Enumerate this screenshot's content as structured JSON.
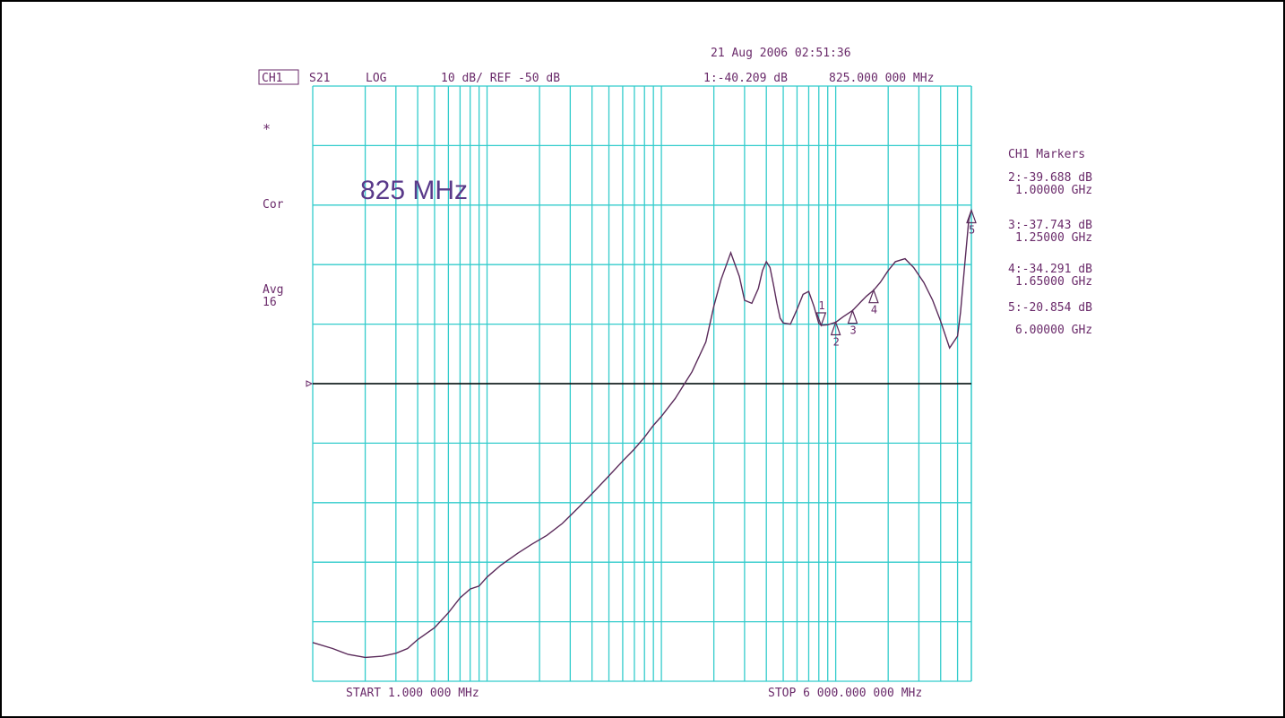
{
  "header": {
    "datetime": "21 Aug 2006  02:51:36",
    "channel": "CH1",
    "parameter": "S21",
    "format": "LOG",
    "scale": "10 dB/ REF -50 dB",
    "active_marker": "1:-40.209 dB",
    "active_marker_freq": "825.000 000 MHz"
  },
  "left_annotations": {
    "asterisk": "*",
    "correction": "Cor",
    "avg_label": "Avg",
    "avg_count": "16",
    "big_label": "825 MHz"
  },
  "footer": {
    "start": "START  1.000 000 MHz",
    "stop": "STOP 6 000.000 000 MHz"
  },
  "marker_panel": {
    "title": "CH1 Markers",
    "entries": [
      {
        "value": "2:-39.688 dB",
        "freq": "1.00000 GHz"
      },
      {
        "value": "3:-37.743 dB",
        "freq": "1.25000 GHz"
      },
      {
        "value": "4:-34.291 dB",
        "freq": "1.65000 GHz"
      },
      {
        "value": "5:-20.854 dB",
        "freq": "6.00000 GHz"
      }
    ]
  },
  "colors": {
    "grid": "#33cccc",
    "trace": "#5a2a5a",
    "text": "#6a2a6a",
    "reference": "#000000"
  },
  "chart_data": {
    "type": "line",
    "x_scale": "log",
    "x_unit": "MHz",
    "xlim": [
      1,
      6000
    ],
    "ylim": [
      -100,
      0
    ],
    "reference_dB": -50,
    "grid": true,
    "series": [
      {
        "x": [
          1,
          1.3,
          1.6,
          2,
          2.5,
          3,
          3.5,
          4,
          5,
          6,
          7,
          8,
          9,
          10,
          12,
          15,
          18,
          22,
          27,
          33,
          40,
          50,
          60,
          70,
          80,
          90,
          100,
          120,
          150,
          180,
          200,
          220,
          250,
          280,
          300,
          330,
          360,
          380,
          400,
          420,
          440,
          460,
          480,
          500,
          550,
          600,
          650,
          700,
          750,
          800,
          825,
          900,
          1000,
          1100,
          1250,
          1400,
          1500,
          1650,
          1800,
          2000,
          2200,
          2500,
          2800,
          3200,
          3600,
          4000,
          4500,
          5000,
          5200,
          5500,
          5800,
          6000
        ],
        "y": [
          -93.5,
          -94.5,
          -95.5,
          -96.0,
          -95.8,
          -95.3,
          -94.5,
          -93.0,
          -91.0,
          -88.5,
          -86.0,
          -84.5,
          -84.0,
          -82.5,
          -80.5,
          -78.5,
          -77.0,
          -75.5,
          -73.5,
          -71.0,
          -68.5,
          -65.5,
          -63.0,
          -61.0,
          -59.0,
          -57.0,
          -55.5,
          -52.5,
          -48.0,
          -43.0,
          -37.0,
          -32.5,
          -28.0,
          -32.0,
          -36.0,
          -36.5,
          -34.0,
          -31.0,
          -29.5,
          -30.5,
          -33.5,
          -36.5,
          -39.0,
          -39.8,
          -40.0,
          -37.5,
          -35.0,
          -34.5,
          -37.0,
          -39.9,
          -40.2,
          -40.1,
          -39.7,
          -38.8,
          -37.7,
          -36.2,
          -35.3,
          -34.3,
          -33.0,
          -31.0,
          -29.5,
          -29.0,
          -30.5,
          -33.0,
          -36.0,
          -39.5,
          -44.0,
          -42.0,
          -38.0,
          -30.0,
          -22.5,
          -20.9
        ]
      }
    ],
    "markers": [
      {
        "label": "1",
        "x": 825,
        "y": -40.209,
        "pointer": "down"
      },
      {
        "label": "2",
        "x": 1000,
        "y": -39.688,
        "pointer": "up"
      },
      {
        "label": "3",
        "x": 1250,
        "y": -37.743,
        "pointer": "up"
      },
      {
        "label": "4",
        "x": 1650,
        "y": -34.291,
        "pointer": "up"
      },
      {
        "label": "5",
        "x": 6000,
        "y": -20.854,
        "pointer": "up"
      }
    ]
  }
}
